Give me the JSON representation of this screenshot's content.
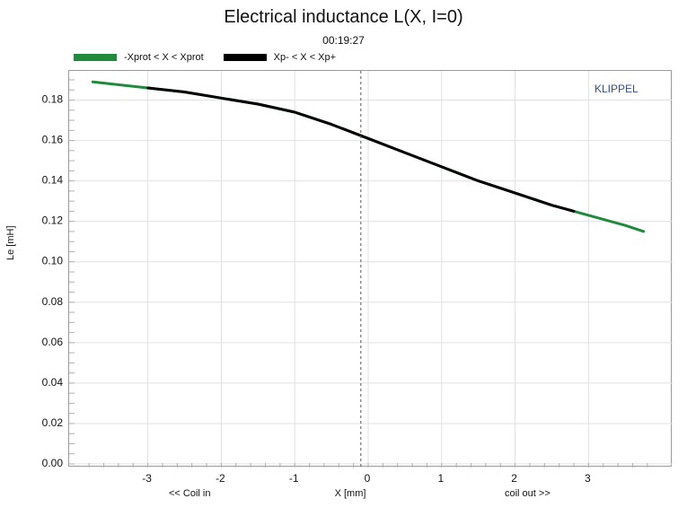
{
  "chart_data": {
    "type": "line",
    "title": "Electrical inductance L(X, I=0)",
    "subtitle": "00:19:27",
    "xlabel": "X [mm]",
    "ylabel": "Le [mH]",
    "xhint_left": "<< Coil in",
    "xhint_right": "coil out >>",
    "brand": "KLIPPEL",
    "xlim": [
      -3.9,
      3.9
    ],
    "ylim": [
      0,
      0.19
    ],
    "x_ticks": [
      -3,
      -2,
      -1,
      0,
      1,
      2,
      3
    ],
    "y_ticks": [
      0.0,
      0.02,
      0.04,
      0.06,
      0.08,
      0.1,
      0.12,
      0.14,
      0.16,
      0.18
    ],
    "y_tick_labels": [
      "0.00",
      "0.02",
      "0.04",
      "0.06",
      "0.08",
      "0.10",
      "0.12",
      "0.14",
      "0.16",
      "0.18"
    ],
    "grid": true,
    "legend_position": "top-left",
    "series": [
      {
        "name": "-Xprot < X < Xprot",
        "color": "#1f8a3c",
        "x": [
          -3.75,
          -3.5,
          -3.0,
          -2.5,
          -2.0,
          -1.5,
          -1.0,
          -0.5,
          0.0,
          0.5,
          1.0,
          1.5,
          2.0,
          2.5,
          3.0,
          3.5,
          3.75
        ],
        "y": [
          0.189,
          0.188,
          0.186,
          0.184,
          0.181,
          0.178,
          0.174,
          0.168,
          0.161,
          0.154,
          0.147,
          0.14,
          0.134,
          0.128,
          0.123,
          0.118,
          0.115
        ]
      },
      {
        "name": "Xp- < X < Xp+",
        "color": "#000000",
        "x": [
          -3.0,
          -2.5,
          -2.0,
          -1.5,
          -1.0,
          -0.5,
          0.0,
          0.5,
          1.0,
          1.5,
          2.0,
          2.5,
          2.8
        ],
        "y": [
          0.186,
          0.184,
          0.181,
          0.178,
          0.174,
          0.168,
          0.161,
          0.154,
          0.147,
          0.14,
          0.134,
          0.128,
          0.125
        ]
      }
    ],
    "annotations": [
      {
        "type": "vertical-dashed-line",
        "x": -0.1
      }
    ]
  }
}
